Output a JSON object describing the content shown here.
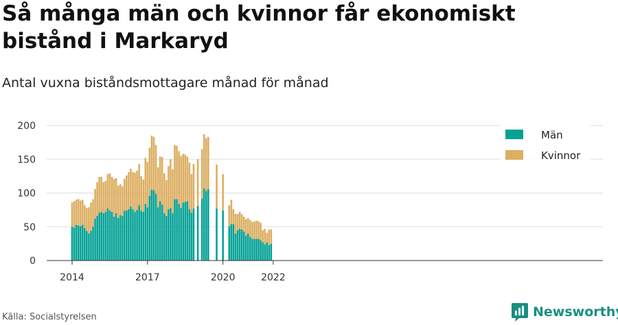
{
  "header": {
    "title": "Så många män och kvinnor får ekonomiskt bistånd i Markaryd",
    "subtitle": "Antal vuxna biståndsmottagare månad för månad"
  },
  "footer": {
    "source": "Källa: Socialstyrelsen",
    "brand": "Newsworthy"
  },
  "colors": {
    "men": "#05a195",
    "women": "#dcae62",
    "brand": "#1a8f80"
  },
  "chart_data": {
    "type": "bar",
    "stacked": true,
    "x_unit": "month",
    "x_start": "2014-01",
    "x_end": "2022-01",
    "xticks": [
      "2014",
      "2017",
      "2020",
      "2022"
    ],
    "ylim": [
      0,
      200
    ],
    "yticks": [
      0,
      50,
      100,
      150,
      200
    ],
    "grid": true,
    "legend_position": "top-right",
    "series": [
      {
        "name": "Män",
        "values": [
          50,
          49,
          53,
          52,
          51,
          53,
          48,
          44,
          40,
          44,
          50,
          62,
          66,
          71,
          72,
          70,
          72,
          77,
          74,
          72,
          65,
          70,
          63,
          67,
          66,
          74,
          74,
          76,
          80,
          76,
          72,
          75,
          82,
          74,
          72,
          84,
          79,
          96,
          105,
          104,
          99,
          79,
          88,
          83,
          70,
          66,
          76,
          78,
          70,
          91,
          91,
          84,
          78,
          86,
          87,
          88,
          76,
          71,
          77,
          null,
          81,
          null,
          92,
          107,
          103,
          106,
          null,
          null,
          null,
          77,
          null,
          null,
          74,
          null,
          null,
          51,
          54,
          54,
          40,
          45,
          47,
          46,
          43,
          37,
          40,
          35,
          32,
          32,
          32,
          32,
          30,
          27,
          24,
          27,
          23,
          25
        ],
        "totals": [
          86,
          88,
          90,
          91,
          89,
          90,
          82,
          78,
          79,
          86,
          91,
          106,
          116,
          124,
          124,
          116,
          118,
          128,
          129,
          124,
          121,
          122,
          111,
          113,
          110,
          121,
          126,
          131,
          136,
          131,
          130,
          133,
          143,
          125,
          120,
          152,
          146,
          167,
          185,
          183,
          171,
          138,
          154,
          153,
          129,
          119,
          140,
          150,
          135,
          171,
          170,
          162,
          155,
          158,
          157,
          154,
          145,
          128,
          143,
          null,
          150,
          null,
          165,
          187,
          181,
          183,
          null,
          null,
          null,
          142,
          null,
          null,
          128,
          null,
          null,
          82,
          90,
          76,
          69,
          69,
          72,
          69,
          65,
          61,
          63,
          60,
          57,
          58,
          59,
          58,
          56,
          45,
          47,
          41,
          46,
          null
        ]
      },
      {
        "name": "Kvinnor",
        "values": [
          36,
          39,
          37,
          39,
          38,
          37,
          34,
          34,
          39,
          42,
          41,
          44,
          50,
          53,
          52,
          46,
          46,
          51,
          55,
          52,
          56,
          52,
          48,
          46,
          44,
          47,
          52,
          55,
          56,
          55,
          58,
          58,
          61,
          51,
          48,
          68,
          67,
          71,
          80,
          79,
          72,
          59,
          66,
          70,
          59,
          53,
          64,
          72,
          65,
          80,
          79,
          78,
          77,
          72,
          70,
          66,
          69,
          57,
          66,
          null,
          69,
          null,
          73,
          80,
          78,
          77,
          null,
          null,
          null,
          65,
          null,
          null,
          54,
          null,
          null,
          31,
          36,
          22,
          29,
          24,
          25,
          23,
          22,
          24,
          23,
          25,
          25,
          26,
          27,
          26,
          26,
          18,
          23,
          14,
          23,
          21
        ]
      }
    ]
  }
}
